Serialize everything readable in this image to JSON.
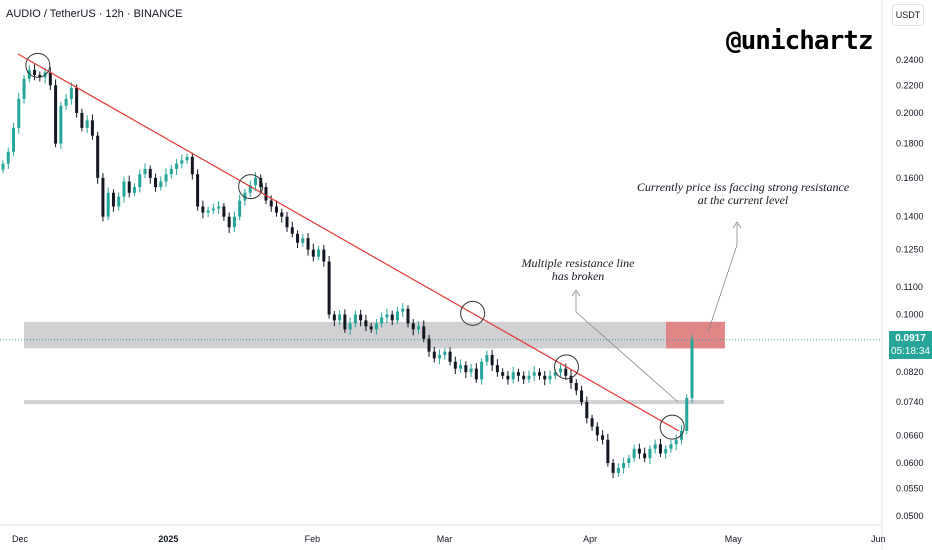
{
  "header": {
    "symbol_line": "AUDIO / TetherUS · 12h · BINANCE"
  },
  "currency_label": "USDT",
  "brand": "@unichartz",
  "annotations": {
    "resistance_note_line1": "Currently price iss faccing strong resistance",
    "resistance_note_line2": "at the current level",
    "broken_note_line1": "Multiple resistance line",
    "broken_note_line2": "has broken"
  },
  "last_price": {
    "value": "0.0917",
    "countdown": "05:18:34"
  },
  "colors": {
    "up": "#26a69a",
    "down": "#131722",
    "trendline": "#e53935",
    "zone": "#c2c2c4",
    "resistance_zone": "#e57373"
  },
  "chart_data": {
    "type": "candlestick",
    "title": "AUDIO / TetherUS · 12h · BINANCE",
    "y_scale": "log",
    "y_ticks": [
      "0.2400",
      "0.2200",
      "0.2000",
      "0.1800",
      "0.1600",
      "0.1400",
      "0.1250",
      "0.1100",
      "0.1000",
      "0.0917",
      "0.0820",
      "0.0740",
      "0.0660",
      "0.0600",
      "0.0550",
      "0.0500"
    ],
    "x_ticks": [
      "Dec",
      "2025",
      "Feb",
      "Mar",
      "Apr",
      "May",
      "Jun"
    ],
    "closes": [
      0.168,
      0.175,
      0.19,
      0.21,
      0.225,
      0.232,
      0.228,
      0.226,
      0.23,
      0.22,
      0.18,
      0.205,
      0.21,
      0.218,
      0.2,
      0.19,
      0.195,
      0.185,
      0.16,
      0.14,
      0.152,
      0.145,
      0.15,
      0.158,
      0.152,
      0.155,
      0.162,
      0.165,
      0.16,
      0.155,
      0.158,
      0.162,
      0.165,
      0.168,
      0.17,
      0.172,
      0.162,
      0.145,
      0.142,
      0.143,
      0.144,
      0.145,
      0.14,
      0.135,
      0.14,
      0.148,
      0.152,
      0.156,
      0.16,
      0.155,
      0.148,
      0.145,
      0.142,
      0.14,
      0.135,
      0.132,
      0.128,
      0.13,
      0.125,
      0.122,
      0.125,
      0.12,
      0.1,
      0.098,
      0.1,
      0.095,
      0.097,
      0.1,
      0.098,
      0.096,
      0.095,
      0.097,
      0.099,
      0.1,
      0.098,
      0.101,
      0.102,
      0.097,
      0.095,
      0.096,
      0.092,
      0.088,
      0.086,
      0.087,
      0.088,
      0.085,
      0.083,
      0.084,
      0.082,
      0.083,
      0.08,
      0.085,
      0.087,
      0.084,
      0.082,
      0.081,
      0.08,
      0.082,
      0.081,
      0.08,
      0.081,
      0.082,
      0.081,
      0.08,
      0.081,
      0.082,
      0.083,
      0.081,
      0.079,
      0.077,
      0.074,
      0.07,
      0.068,
      0.066,
      0.065,
      0.06,
      0.058,
      0.059,
      0.06,
      0.061,
      0.063,
      0.062,
      0.061,
      0.063,
      0.064,
      0.062,
      0.063,
      0.064,
      0.065,
      0.067,
      0.075,
      0.0917
    ],
    "trendline": {
      "from": {
        "date": "2024-12-01",
        "price": 0.245
      },
      "to": {
        "date": "2025-04-20",
        "price": 0.067
      }
    },
    "zones": [
      {
        "kind": "support",
        "price_low": 0.0735,
        "price_high": 0.0745
      },
      {
        "kind": "resistance",
        "price_low": 0.089,
        "price_high": 0.0975
      }
    ],
    "grid": false,
    "legend": "none"
  }
}
